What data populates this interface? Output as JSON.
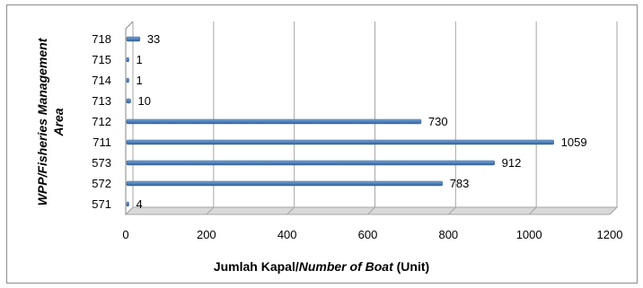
{
  "chart_data": {
    "type": "bar",
    "orientation": "horizontal",
    "categories": [
      "571",
      "572",
      "573",
      "711",
      "712",
      "713",
      "714",
      "715",
      "718"
    ],
    "values": [
      4,
      783,
      912,
      1059,
      730,
      10,
      1,
      1,
      33
    ],
    "xlim": [
      0,
      1200
    ],
    "x_ticks": [
      "0",
      "200",
      "400",
      "600",
      "800",
      "1000",
      "1200"
    ],
    "xlabel": {
      "part1": "Jumlah Kapal/",
      "part2_italic": "Number of Boat",
      "part3": " (Unit)"
    },
    "ylabel": {
      "line1": "WPP/Fisheries Management",
      "line2": "Area"
    },
    "grid": true,
    "legend": "none",
    "bar_color": "#4f81bd"
  }
}
